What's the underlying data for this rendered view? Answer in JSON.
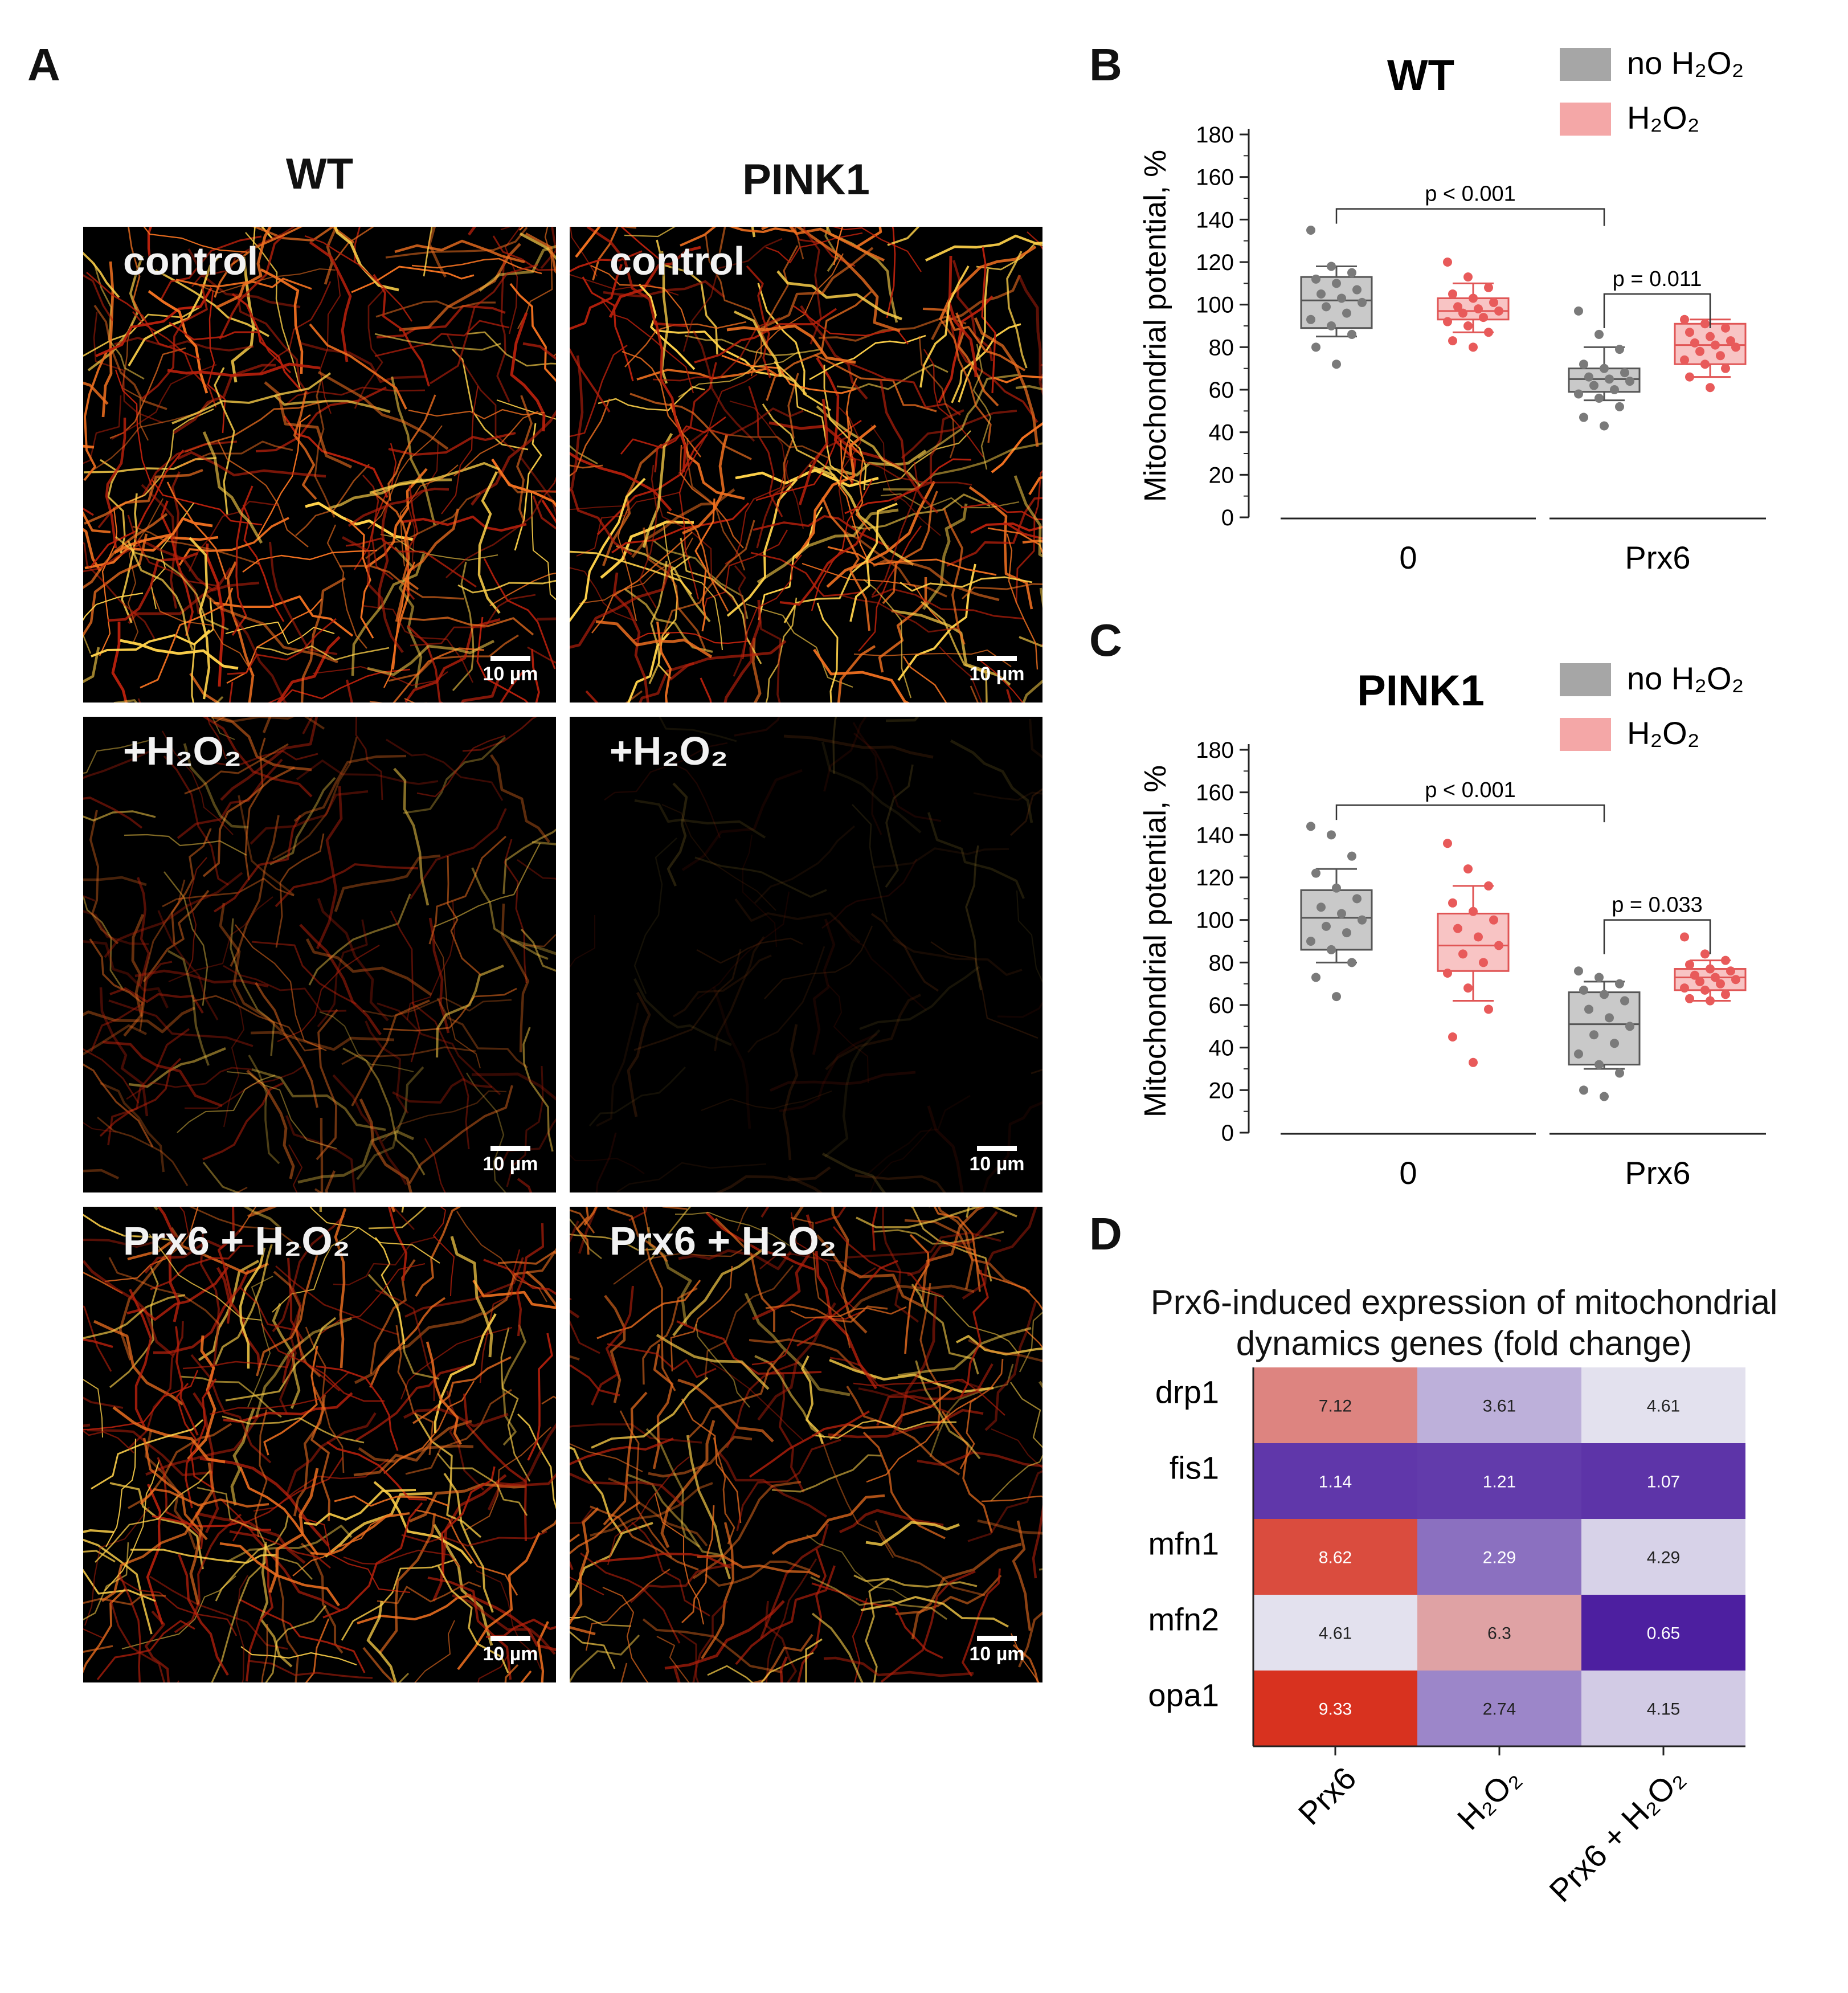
{
  "panel_letters": {
    "a": "A",
    "b": "B",
    "c": "C",
    "d": "D"
  },
  "panel_a": {
    "column_titles": [
      "WT",
      "PINK1"
    ],
    "images": [
      {
        "label": "control",
        "scale": "10 µm",
        "intensity": "high",
        "brightness": 1.0
      },
      {
        "label": "control",
        "scale": "10 µm",
        "intensity": "high",
        "brightness": 1.0
      },
      {
        "label": "+H₂O₂",
        "scale": "10 µm",
        "intensity": "medium",
        "brightness": 0.55
      },
      {
        "label": "+H₂O₂",
        "scale": "10 µm",
        "intensity": "low",
        "brightness": 0.15
      },
      {
        "label": "Prx6 + H₂O₂",
        "scale": "10 µm",
        "intensity": "high",
        "brightness": 0.9
      },
      {
        "label": "Prx6 + H₂O₂",
        "scale": "10 µm",
        "intensity": "high",
        "brightness": 0.8
      }
    ]
  },
  "chart_data": [
    {
      "type": "box",
      "title": "WT",
      "ylabel": "Mitochondrial potential, %",
      "ylim": [
        0,
        180
      ],
      "yticks": [
        0,
        20,
        40,
        60,
        80,
        100,
        120,
        140,
        160,
        180
      ],
      "groups": [
        "0",
        "Prx6"
      ],
      "legend": [
        {
          "name": "no H₂O₂",
          "color": "#a6a6a6"
        },
        {
          "name": "H₂O₂",
          "color": "#f4a7a7"
        }
      ],
      "series": [
        {
          "name": "no H₂O₂",
          "group": "0",
          "q1": 89,
          "median": 102,
          "q3": 113,
          "whisker_low": 85,
          "whisker_high": 118,
          "points": [
            135,
            118,
            115,
            112,
            110,
            107,
            105,
            103,
            101,
            99,
            96,
            93,
            90,
            86,
            80,
            72
          ]
        },
        {
          "name": "H₂O₂",
          "group": "0",
          "q1": 93,
          "median": 97,
          "q3": 103,
          "whisker_low": 87,
          "whisker_high": 110,
          "points": [
            120,
            113,
            108,
            105,
            103,
            101,
            99,
            98,
            97,
            96,
            94,
            92,
            90,
            87,
            83,
            80
          ]
        },
        {
          "name": "no H₂O₂",
          "group": "Prx6",
          "q1": 59,
          "median": 65,
          "q3": 70,
          "whisker_low": 55,
          "whisker_high": 80,
          "points": [
            97,
            86,
            79,
            72,
            70,
            68,
            66,
            65,
            64,
            62,
            60,
            58,
            56,
            52,
            47,
            43
          ]
        },
        {
          "name": "H₂O₂",
          "group": "Prx6",
          "q1": 72,
          "median": 81,
          "q3": 91,
          "whisker_low": 66,
          "whisker_high": 93,
          "points": [
            93,
            91,
            89,
            87,
            85,
            83,
            82,
            81,
            80,
            78,
            76,
            74,
            72,
            70,
            66,
            61
          ]
        }
      ],
      "comparisons": [
        {
          "label": "p < 0.001",
          "from": "0 / no H₂O₂",
          "to": "Prx6 / no H₂O₂"
        },
        {
          "label": "p = 0.011",
          "from": "Prx6 / no H₂O₂",
          "to": "Prx6 / H₂O₂"
        }
      ]
    },
    {
      "type": "box",
      "title": "PINK1",
      "ylabel": "Mitochondrial potential, %",
      "ylim": [
        0,
        180
      ],
      "yticks": [
        0,
        20,
        40,
        60,
        80,
        100,
        120,
        140,
        160,
        180
      ],
      "groups": [
        "0",
        "Prx6"
      ],
      "legend": [
        {
          "name": "no H₂O₂",
          "color": "#a6a6a6"
        },
        {
          "name": "H₂O₂",
          "color": "#f4a7a7"
        }
      ],
      "series": [
        {
          "name": "no H₂O₂",
          "group": "0",
          "q1": 86,
          "median": 101,
          "q3": 114,
          "whisker_low": 80,
          "whisker_high": 124,
          "points": [
            144,
            140,
            130,
            122,
            115,
            110,
            106,
            103,
            100,
            97,
            94,
            90,
            86,
            80,
            73,
            64
          ]
        },
        {
          "name": "H₂O₂",
          "group": "0",
          "q1": 76,
          "median": 88,
          "q3": 103,
          "whisker_low": 62,
          "whisker_high": 116,
          "points": [
            136,
            124,
            116,
            108,
            104,
            100,
            96,
            92,
            88,
            84,
            80,
            75,
            68,
            58,
            45,
            33
          ]
        },
        {
          "name": "no H₂O₂",
          "group": "Prx6",
          "q1": 32,
          "median": 51,
          "q3": 66,
          "whisker_low": 30,
          "whisker_high": 71,
          "points": [
            76,
            73,
            70,
            67,
            65,
            62,
            58,
            54,
            50,
            46,
            42,
            37,
            32,
            28,
            20,
            17
          ]
        },
        {
          "name": "H₂O₂",
          "group": "Prx6",
          "q1": 67,
          "median": 73,
          "q3": 77,
          "whisker_low": 62,
          "whisker_high": 81,
          "points": [
            92,
            84,
            81,
            79,
            77,
            76,
            74,
            73,
            72,
            71,
            70,
            68,
            67,
            65,
            63,
            62
          ]
        }
      ],
      "comparisons": [
        {
          "label": "p < 0.001",
          "from": "0 / no H₂O₂",
          "to": "Prx6 / no H₂O₂"
        },
        {
          "label": "p = 0.033",
          "from": "Prx6 / no H₂O₂",
          "to": "Prx6 / H₂O₂"
        }
      ]
    },
    {
      "type": "heatmap",
      "title": "Prx6-induced expression of mitochondrial dynamics genes (fold change)",
      "rows": [
        "drp1",
        "fis1",
        "mfn1",
        "mfn2",
        "opa1"
      ],
      "columns": [
        "Prx6",
        "H₂O₂",
        "Prx6 + H₂O₂"
      ],
      "values": [
        [
          7.12,
          3.61,
          4.61
        ],
        [
          1.14,
          1.21,
          1.07
        ],
        [
          8.62,
          2.29,
          4.29
        ],
        [
          4.61,
          6.3,
          0.65
        ],
        [
          9.33,
          2.74,
          4.15
        ]
      ],
      "color_scale": {
        "low": "#4d1fa0",
        "mid": "#e3e1ee",
        "high": "#d8321f",
        "min": 0.65,
        "mid_value": 4.6,
        "max": 9.33
      }
    }
  ]
}
